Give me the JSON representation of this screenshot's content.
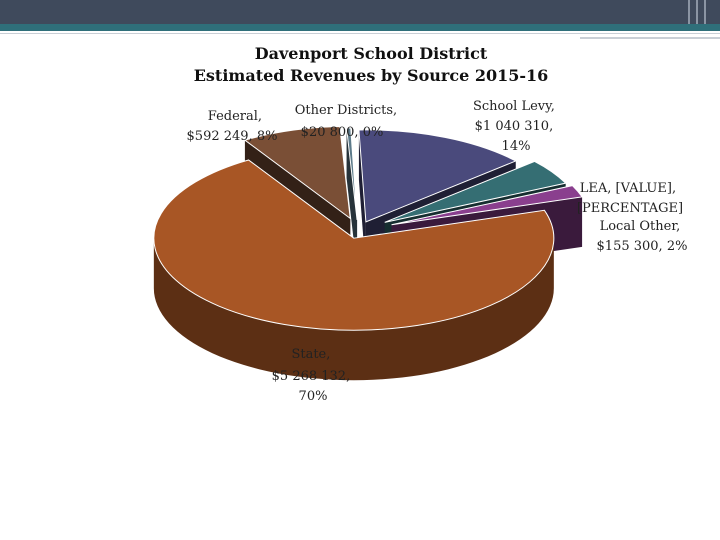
{
  "chart_data": {
    "type": "pie",
    "title": "Davenport School District",
    "subtitle": "Estimated Revenues by Source 2015-16",
    "slices": [
      {
        "label": "School Levy, $1 040 310, 14%",
        "category": "School Levy",
        "value": 1040310,
        "percent": 14,
        "color": "#4a4a7c"
      },
      {
        "label": "LEA, [VALUE], [PERCENTAGE]",
        "category": "LEA",
        "value": 335000,
        "percent": 4,
        "color": "#356e73"
      },
      {
        "label": "Local Other, $155 300, 2%",
        "category": "Local Other",
        "value": 155300,
        "percent": 2,
        "color": "#8a3f8e"
      },
      {
        "label": "State, $5 268 132, 70%",
        "category": "State",
        "value": 5268132,
        "percent": 70,
        "color": "#a85625"
      },
      {
        "label": "Federal, $592 249, 8%",
        "category": "Federal",
        "value": 592249,
        "percent": 8,
        "color": "#7a4f36"
      },
      {
        "label": "Other Districts, $20 800, 0%",
        "category": "Other Districts",
        "value": 20800,
        "percent": 0,
        "color": "#5c7a8a"
      }
    ]
  }
}
